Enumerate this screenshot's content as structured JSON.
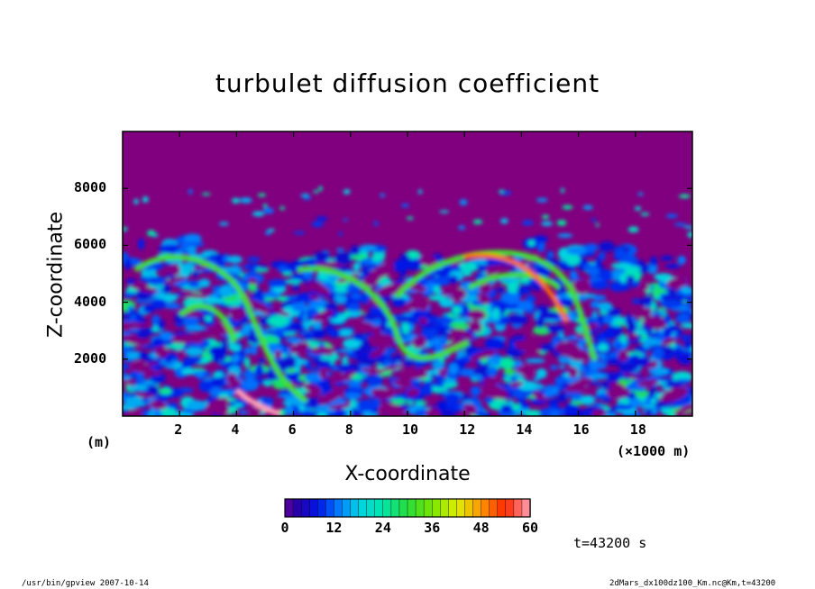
{
  "chart_data": {
    "type": "heatmap",
    "title": "turbulet diffusion coefficient",
    "xlabel": "X-coordinate",
    "ylabel": "Z-coordinate",
    "x_unit_left": "(m)",
    "x_unit_right": "(×1000 m)",
    "xlim": [
      0,
      20
    ],
    "ylim": [
      0,
      10000
    ],
    "x_ticks": [
      "2",
      "4",
      "6",
      "8",
      "10",
      "12",
      "14",
      "16",
      "18"
    ],
    "x_tick_values": [
      2,
      4,
      6,
      8,
      10,
      12,
      14,
      16,
      18
    ],
    "y_ticks": [
      "2000",
      "4000",
      "6000",
      "8000"
    ],
    "y_tick_values": [
      2000,
      4000,
      6000,
      8000
    ],
    "colorbar": {
      "min": 0,
      "max": 60,
      "step": 2,
      "tick_labels": [
        "0",
        "12",
        "24",
        "36",
        "48",
        "60"
      ],
      "tick_values": [
        0,
        12,
        24,
        36,
        48,
        60
      ]
    },
    "background_color": "#800080",
    "features": [
      {
        "kind": "band",
        "z_range_m": [
          0,
          6000
        ],
        "typical_value": 14,
        "note": "turbulent layer"
      },
      {
        "kind": "streak",
        "x_km": [
          12,
          15.5
        ],
        "peak_value": 50
      },
      {
        "kind": "streak",
        "x_km": [
          4,
          5.5
        ],
        "peak_value": 60
      }
    ],
    "grid": false
  },
  "annotations": {
    "time": "t=43200 s",
    "footer_left": "/usr/bin/gpview   2007-10-14",
    "footer_right": "2dMars_dx100dz100_Km.nc@Km,t=43200"
  }
}
